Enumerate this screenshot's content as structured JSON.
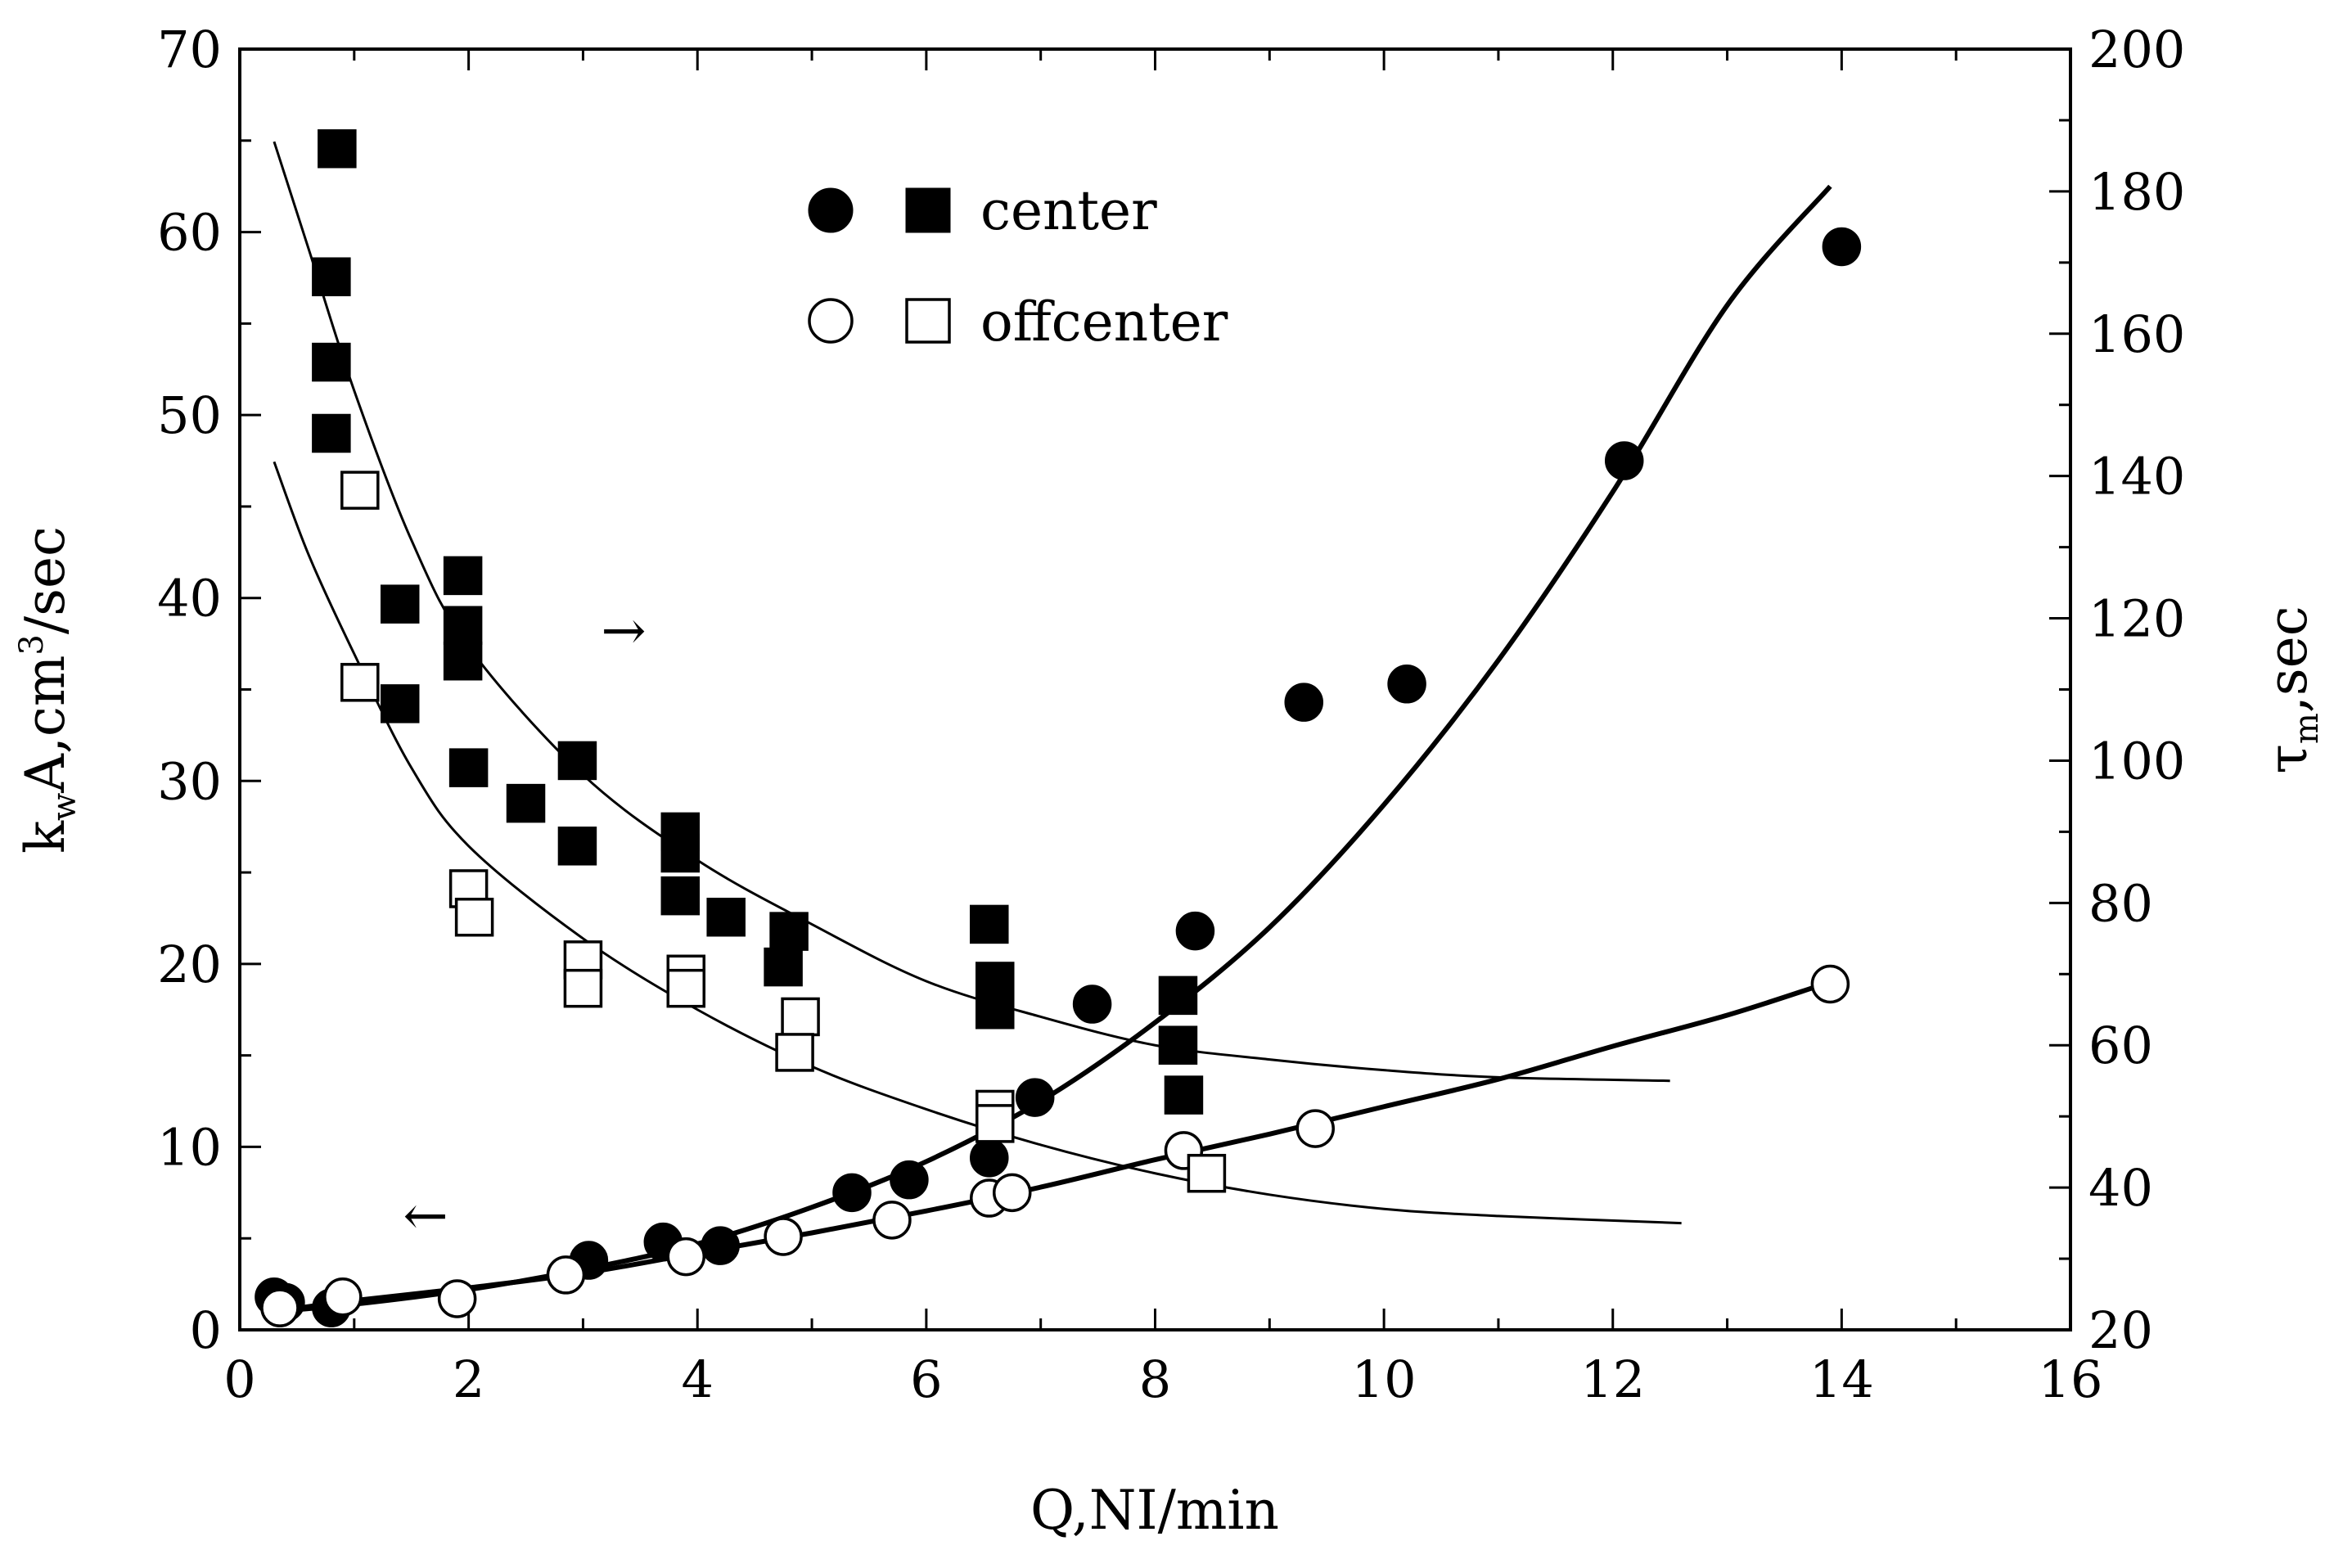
{
  "chart_data": {
    "type": "scatter",
    "xlabel": "Q,NI/min",
    "ylabel_left": {
      "main": "k",
      "sub": "w",
      "rest": "A,cm",
      "sup": "3",
      "tail": "/sec"
    },
    "ylabel_right": {
      "main": "τ",
      "sub": "m",
      "rest": ",sec"
    },
    "xlim": [
      0,
      16
    ],
    "ylim_left": [
      0,
      70
    ],
    "ylim_right": [
      20,
      200
    ],
    "x_ticks": [
      0,
      2,
      4,
      6,
      8,
      10,
      12,
      14,
      16
    ],
    "y_left_ticks": [
      0,
      10,
      20,
      30,
      40,
      50,
      60,
      70
    ],
    "y_right_ticks": [
      20,
      40,
      60,
      80,
      100,
      120,
      140,
      160,
      180,
      200
    ],
    "legend": {
      "position": "top-center",
      "entries": [
        {
          "label": "center",
          "markers": [
            "filled-circle",
            "filled-square"
          ]
        },
        {
          "label": "offcenter",
          "markers": [
            "open-circle",
            "open-square"
          ]
        }
      ]
    },
    "annotations": [
      {
        "text": "→",
        "meaning": "squares read on right axis",
        "x": 3.4,
        "y": 40
      },
      {
        "text": "←",
        "meaning": "circles read on left axis",
        "x": 2.0,
        "y": 7
      }
    ],
    "series": [
      {
        "name": "center kwA (circles)",
        "axis": "left",
        "marker": "filled-circle",
        "x": [
          0.3,
          0.4,
          0.8,
          3.05,
          3.7,
          4.2,
          5.35,
          5.85,
          6.55,
          6.95,
          7.45,
          8.35,
          9.3,
          10.2,
          12.1,
          14.0
        ],
        "y": [
          1.8,
          1.5,
          1.2,
          3.8,
          4.8,
          4.6,
          7.5,
          8.2,
          9.4,
          12.7,
          17.8,
          21.8,
          34.3,
          35.3,
          47.5,
          59.2
        ]
      },
      {
        "name": "offcenter kwA (circles)",
        "axis": "left",
        "marker": "open-circle",
        "x": [
          0.35,
          0.9,
          1.9,
          2.85,
          3.9,
          4.75,
          5.7,
          6.55,
          6.75,
          8.25,
          9.4,
          13.9
        ],
        "y": [
          1.2,
          1.8,
          1.7,
          3.0,
          4.0,
          5.1,
          6.0,
          7.2,
          7.5,
          9.8,
          11.0,
          18.9
        ]
      },
      {
        "name": "center τm (squares)",
        "axis": "right",
        "marker": "filled-square",
        "x": [
          0.85,
          0.8,
          0.8,
          0.8,
          1.4,
          1.4,
          1.95,
          1.95,
          1.95,
          2.0,
          2.5,
          2.95,
          2.95,
          3.85,
          3.85,
          3.85,
          4.25,
          4.8,
          4.75,
          6.55,
          6.6,
          6.6,
          8.2,
          8.2,
          8.25
        ],
        "y": [
          186,
          168,
          156,
          146,
          122,
          108,
          126,
          119,
          114,
          99,
          94,
          100,
          88,
          90,
          87,
          81,
          78,
          76,
          71,
          77,
          69,
          65,
          67,
          60,
          53
        ]
      },
      {
        "name": "offcenter τm (squares)",
        "axis": "right",
        "marker": "open-square",
        "x": [
          1.05,
          1.05,
          2.0,
          2.05,
          3.0,
          3.0,
          3.9,
          3.9,
          4.9,
          4.85,
          6.6,
          6.6,
          8.45
        ],
        "y": [
          138,
          111,
          82,
          78,
          72,
          68,
          70,
          68,
          64,
          59,
          51,
          49,
          42
        ]
      }
    ],
    "fits": [
      {
        "name": "center kwA fit",
        "axis": "left",
        "weight": "bold",
        "x": [
          0.3,
          1,
          2,
          3,
          4,
          5,
          6,
          7,
          8,
          9,
          10,
          11,
          12,
          13,
          13.9
        ],
        "y": [
          1.0,
          1.4,
          2.2,
          3.3,
          4.7,
          6.7,
          9.2,
          12.5,
          16.8,
          22.0,
          28.7,
          36.6,
          45.8,
          56.0,
          62.5
        ]
      },
      {
        "name": "offcenter kwA fit",
        "axis": "left",
        "weight": "bold",
        "x": [
          0.3,
          1,
          2,
          3,
          4,
          5,
          6,
          7,
          8,
          9,
          10,
          11,
          12,
          13,
          13.8
        ],
        "y": [
          1.0,
          1.6,
          2.3,
          3.1,
          4.2,
          5.3,
          6.5,
          7.8,
          9.3,
          10.7,
          12.2,
          13.7,
          15.5,
          17.2,
          18.8
        ]
      },
      {
        "name": "center τm fit",
        "axis": "right",
        "weight": "thin",
        "x": [
          0.3,
          0.6,
          1,
          1.5,
          2,
          3,
          4,
          5,
          6,
          7,
          8,
          9,
          10,
          11,
          12.5
        ],
        "y": [
          187,
          172,
          152,
          131,
          116,
          98,
          86,
          77,
          69,
          64,
          60,
          58,
          56.5,
          55.5,
          55
        ]
      },
      {
        "name": "offcenter τm fit",
        "axis": "right",
        "weight": "thin",
        "x": [
          0.3,
          0.6,
          1,
          1.5,
          2,
          3,
          4,
          5,
          6,
          7,
          8,
          9,
          10,
          11,
          12.6
        ],
        "y": [
          142,
          129,
          115,
          99,
          88,
          75,
          65,
          57,
          51,
          46,
          42,
          39,
          37,
          36,
          35
        ]
      }
    ]
  }
}
